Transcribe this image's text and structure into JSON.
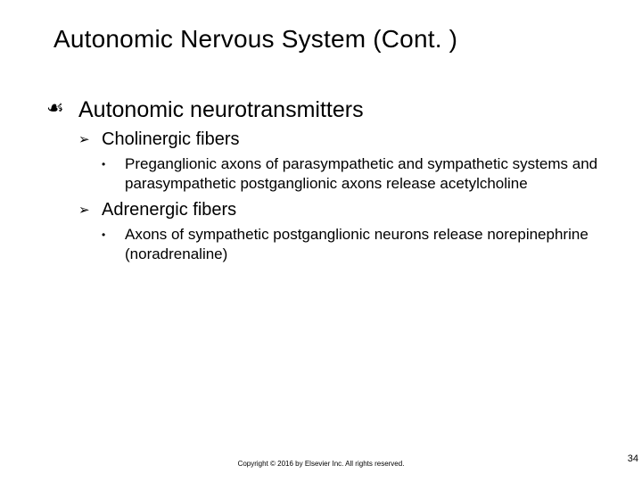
{
  "title": "Autonomic Nervous System (Cont. )",
  "bullets": {
    "l1": {
      "glyph": "☙",
      "text": "Autonomic neurotransmitters"
    },
    "l2a": {
      "glyph": "➢",
      "text": "Cholinergic fibers"
    },
    "l3a": {
      "glyph": "•",
      "text": "Preganglionic axons of parasympathetic and sympathetic systems and parasympathetic postganglionic axons release acetylcholine"
    },
    "l2b": {
      "glyph": "➢",
      "text": "Adrenergic fibers"
    },
    "l3b": {
      "glyph": "•",
      "text": "Axons of sympathetic postganglionic neurons release norepinephrine (noradrenaline)"
    }
  },
  "footer": "Copyright © 2016 by Elsevier Inc. All rights reserved.",
  "page_number": "34",
  "colors": {
    "background": "#ffffff",
    "text": "#000000"
  },
  "typography": {
    "title_fontsize": 28,
    "l1_fontsize": 25,
    "l2_fontsize": 20,
    "l3_fontsize": 17,
    "footer_fontsize": 8
  }
}
